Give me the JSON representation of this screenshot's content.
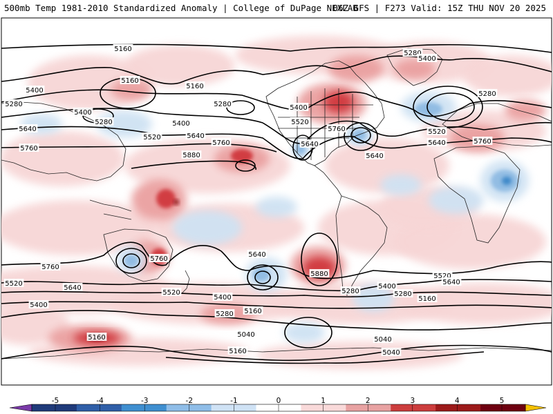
{
  "header": {
    "title": "500mb Temp 1981-2010 Standardized Anomaly | College of DuPage NEXLAB",
    "run_info": "06Z GFS | F273 Valid: 15Z THU NOV 20 2025"
  },
  "map": {
    "projection": "global cylindrical",
    "background_color": "#ffffff",
    "height_contours_dam": [
      "5040",
      "5160",
      "5280",
      "5400",
      "5520",
      "5640",
      "5760",
      "5880"
    ],
    "contour_labels": [
      "5160",
      "5280",
      "5400",
      "5160",
      "5280",
      "5160",
      "5400",
      "5280",
      "5640",
      "5400",
      "5520",
      "5280",
      "5760",
      "5640",
      "5880",
      "5520",
      "5760",
      "5640",
      "5640",
      "5400",
      "5280",
      "5400",
      "5520",
      "5640",
      "5760",
      "5760",
      "5520",
      "5640",
      "5760",
      "5880",
      "5640",
      "5520",
      "5400",
      "5280",
      "5160",
      "5760",
      "5640",
      "5400",
      "5520",
      "5280",
      "5400",
      "5160",
      "5280",
      "5160",
      "5040",
      "5040",
      "5040",
      "5160"
    ],
    "anomaly_colors": {
      "strong_warm": "#8b0a12",
      "warm": "#d0393c",
      "mild_warm": "#eaa0a0",
      "weak_warm": "#f7d6d6",
      "weak_cold": "#cfe2f3",
      "cold": "#8fbbe3",
      "strong_cold": "#3a86c8"
    }
  },
  "colorbar": {
    "ticks": [
      "-5",
      "-4",
      "-3",
      "-2",
      "-1",
      "0",
      "1",
      "2",
      "3",
      "4",
      "5"
    ],
    "colors": [
      "#7a3aa8",
      "#1f3a7a",
      "#2f5fa8",
      "#3f8fd0",
      "#8fbde8",
      "#cfe2f5",
      "#ffffff",
      "#f9d9d9",
      "#e8a2a2",
      "#cc3d3d",
      "#9c1a1a",
      "#6e0010",
      "#f4c000"
    ]
  }
}
